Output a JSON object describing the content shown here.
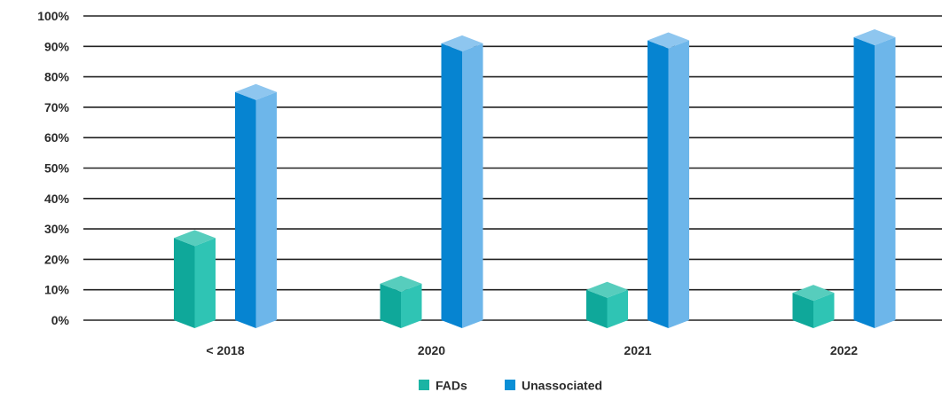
{
  "chart_data": {
    "type": "bar",
    "categories": [
      "< 2018",
      "2020",
      "2021",
      "2022"
    ],
    "series": [
      {
        "name": "FADs",
        "values": [
          27,
          12,
          10,
          9
        ],
        "color": "#1bb4a4"
      },
      {
        "name": "Unassociated",
        "values": [
          75,
          91,
          92,
          93
        ],
        "color": "#0a8fd6"
      }
    ],
    "yticks": [
      "0%",
      "10%",
      "20%",
      "30%",
      "40%",
      "50%",
      "60%",
      "70%",
      "80%",
      "90%",
      "100%"
    ],
    "ylim": [
      0,
      100
    ],
    "grid": true,
    "legend_position": "bottom-center",
    "title": "",
    "xlabel": "",
    "ylabel": ""
  }
}
